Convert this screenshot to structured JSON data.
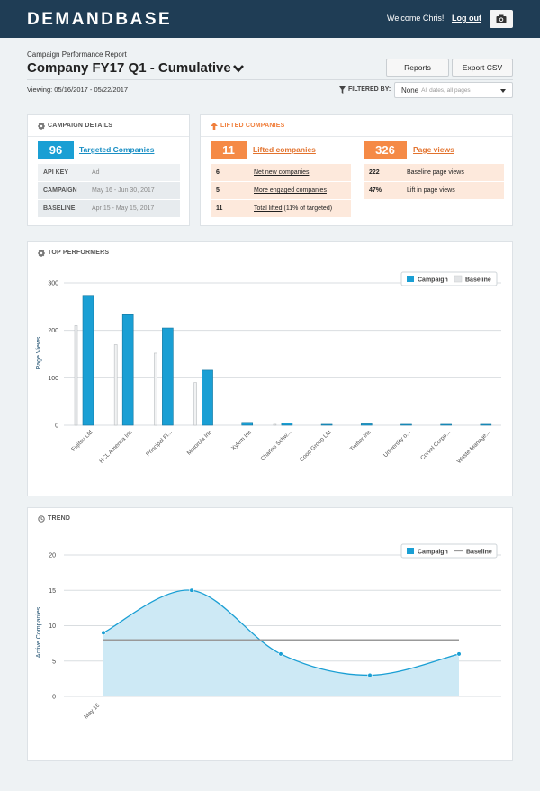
{
  "header": {
    "logo": "DEMANDBASE",
    "welcome": "Welcome Chris!",
    "logout": "Log out",
    "camera_icon": "camera-icon"
  },
  "report": {
    "label": "Campaign Performance Report",
    "title": "Company FY17 Q1 - Cumulative",
    "viewing": "Viewing: 05/16/2017 - 05/22/2017",
    "buttons": {
      "reports": "Reports",
      "export": "Export CSV"
    },
    "filter": {
      "label": "FILTERED BY:",
      "value": "None",
      "hint": "All dates, all pages"
    }
  },
  "campaign_details": {
    "title": "CAMPAIGN DETAILS",
    "count": "96",
    "count_label": "Targeted Companies",
    "rows": [
      {
        "key": "API KEY",
        "value": "Ad"
      },
      {
        "key": "CAMPAIGN",
        "value": "May 16 - Jun 30, 2017"
      },
      {
        "key": "BASELINE",
        "value": "Apr 15 - May 15, 2017"
      }
    ]
  },
  "lifted_companies": {
    "title": "LIFTED COMPANIES",
    "count": "11",
    "count_label": "Lifted companies",
    "rows": [
      {
        "num": "6",
        "label": "Net new companies",
        "suffix": ""
      },
      {
        "num": "5",
        "label": "More engaged companies",
        "suffix": ""
      },
      {
        "num": "11",
        "label": "Total lifted",
        "suffix": "(11% of targeted)"
      }
    ],
    "page_views": "326",
    "page_views_label": "Page views",
    "pv_rows": [
      {
        "num": "222",
        "label": "Baseline page views"
      },
      {
        "num": "47%",
        "label": "Lift in page views"
      }
    ]
  },
  "top_performers": {
    "title": "TOP PERFORMERS",
    "legend": {
      "campaign": "Campaign",
      "baseline": "Baseline"
    }
  },
  "trend": {
    "title": "TREND",
    "legend": {
      "campaign": "Campaign",
      "baseline": "Baseline"
    }
  },
  "colors": {
    "accent": "#1a9fd4",
    "orange": "#f58a46",
    "header": "#1f3d55",
    "peach": "#fde9dc"
  },
  "chart_data": [
    {
      "type": "bar",
      "title": "TOP PERFORMERS",
      "ylabel": "Page Views",
      "ylim": [
        0,
        300
      ],
      "yticks": [
        0,
        100,
        200,
        300
      ],
      "categories": [
        "Fujitsu Ltd",
        "HCL America Inc",
        "Principal Fi...",
        "Motorola Inc",
        "Xylem Inc",
        "Charles Schw...",
        "Coop Group Ltd",
        "Twitter Inc",
        "University o...",
        "Corvel Corpo...",
        "Waste Manage..."
      ],
      "series": [
        {
          "name": "Baseline",
          "values": [
            210,
            170,
            152,
            90,
            0,
            2,
            0,
            0,
            0,
            0,
            0
          ]
        },
        {
          "name": "Campaign",
          "values": [
            272,
            233,
            205,
            116,
            6,
            5,
            2,
            3,
            2,
            2,
            2
          ]
        }
      ],
      "grid": true,
      "legend": "top-right"
    },
    {
      "type": "area",
      "title": "TREND",
      "ylabel": "Active Companies",
      "ylim": [
        0,
        20
      ],
      "yticks": [
        0,
        5,
        10,
        15,
        20
      ],
      "x_label_shown": "May 16",
      "series": [
        {
          "name": "Campaign",
          "values": [
            9,
            15,
            6,
            3,
            6
          ]
        },
        {
          "name": "Baseline",
          "values": [
            8,
            8,
            8,
            8,
            8
          ]
        }
      ],
      "grid": true,
      "legend": "top-right"
    }
  ]
}
